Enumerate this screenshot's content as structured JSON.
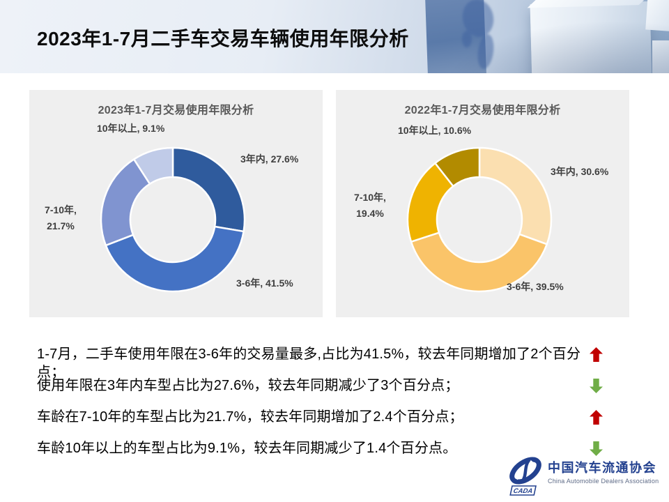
{
  "header": {
    "title": "2023年1-7月二手车交易车辆使用年限分析"
  },
  "chart_data": [
    {
      "type": "pie",
      "subtype": "donut",
      "title": "2023年1-7月交易使用年限分析",
      "categories": [
        "3年内",
        "3-6年",
        "7-10年",
        "10年以上"
      ],
      "values": [
        27.6,
        41.5,
        21.7,
        9.1
      ],
      "unit": "%",
      "colors": [
        "#2F5B9D",
        "#4472C4",
        "#8094D0",
        "#C0CBE8"
      ],
      "start_angle_deg": 0,
      "direction": "clockwise",
      "label_texts": [
        "3年内, 27.6%",
        "3-6年, 41.5%",
        "7-10年,\n21.7%",
        "10年以上, 9.1%"
      ]
    },
    {
      "type": "pie",
      "subtype": "donut",
      "title": "2022年1-7月交易使用年限分析",
      "categories": [
        "3年内",
        "3-6年",
        "7-10年",
        "10年以上"
      ],
      "values": [
        30.6,
        39.5,
        19.4,
        10.6
      ],
      "unit": "%",
      "colors": [
        "#FBDFB0",
        "#FAC469",
        "#EFB301",
        "#B28B00"
      ],
      "start_angle_deg": 0,
      "direction": "clockwise",
      "label_texts": [
        "3年内, 30.6%",
        "3-6年, 39.5%",
        "7-10年,\n19.4%",
        "10年以上, 10.6%"
      ]
    }
  ],
  "summary": {
    "items": [
      {
        "text": "1-7月，二手车使用年限在3-6年的交易量最多,占比为41.5%，较去年同期增加了2个百分点；",
        "trend": "up"
      },
      {
        "text": "使用年限在3年内车型占比为27.6%，较去年同期减少了3个百分点；",
        "trend": "down"
      },
      {
        "text": "车龄在7-10年的车型占比为21.7%，较去年同期增加了2.4个百分点；",
        "trend": "up"
      },
      {
        "text": "车龄10年以上的车型占比为9.1%，较去年同期减少了1.4个百分点。",
        "trend": "down"
      }
    ],
    "trend_colors": {
      "up": "#C00000",
      "down": "#70AD47"
    }
  },
  "logo": {
    "acronym": "CADA",
    "name_cn": "中国汽车流通协会",
    "name_en": "China Automobile Dealers Association",
    "brand_color": "#23418F"
  }
}
